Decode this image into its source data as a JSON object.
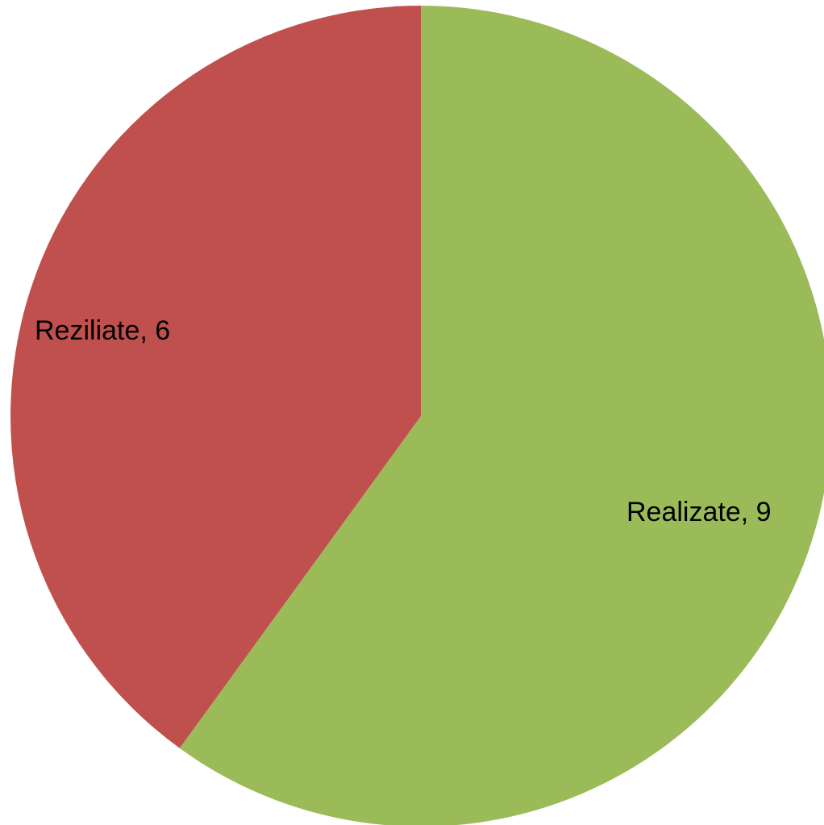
{
  "chart_data": {
    "type": "pie",
    "slices": [
      {
        "label": "Realizate",
        "value": 9,
        "color": "#9BBB59",
        "display": "Realizate, 9"
      },
      {
        "label": "Reziliate",
        "value": 6,
        "color": "#C0504D",
        "display": "Reziliate, 6"
      }
    ],
    "start_angle_deg": 0,
    "direction": "clockwise",
    "legend": "none",
    "title": ""
  }
}
